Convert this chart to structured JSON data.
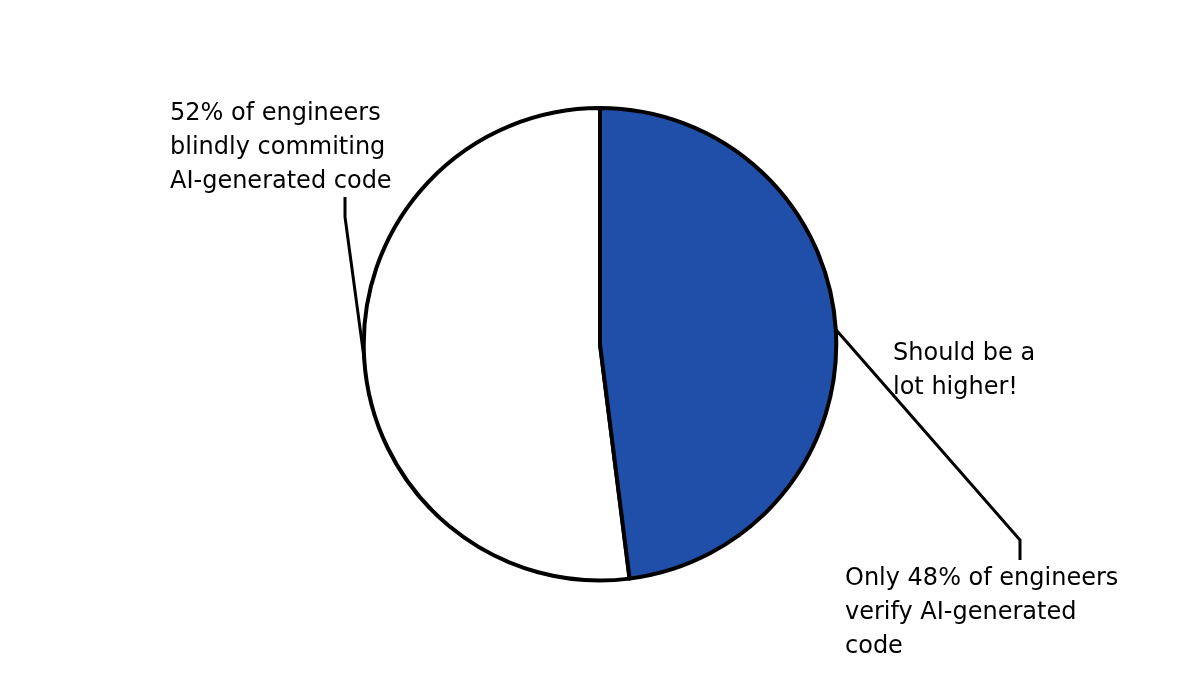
{
  "chart_data": {
    "type": "pie",
    "categories": [
      "52% of engineers blindly commiting AI-generated code",
      "Only 48% of engineers verify AI-generated code"
    ],
    "values": [
      52,
      48
    ],
    "colors": [
      "#ffffff",
      "#1f4fa8"
    ],
    "annotations": [
      "Should be a lot higher!"
    ]
  }
}
